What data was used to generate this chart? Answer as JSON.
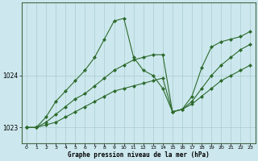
{
  "xlabel": "Graphe pression niveau de la mer (hPa)",
  "bg_color": "#cce8ee",
  "grid_color": "#aacccc",
  "line_color": "#2d6a2d",
  "xlim": [
    -0.5,
    23.5
  ],
  "ylim": [
    1022.7,
    1025.4
  ],
  "yticks": [
    1023,
    1024
  ],
  "ytick_labels": [
    "1023",
    "1024"
  ],
  "xticks": [
    0,
    1,
    2,
    3,
    4,
    5,
    6,
    7,
    8,
    9,
    10,
    11,
    12,
    13,
    14,
    15,
    16,
    17,
    18,
    19,
    20,
    21,
    22,
    23
  ],
  "series": [
    {
      "x": [
        0,
        1,
        2,
        3,
        4,
        5,
        6,
        7,
        8,
        9,
        10,
        11,
        12,
        13,
        14,
        15,
        16,
        17,
        18,
        19,
        20,
        21,
        22,
        23
      ],
      "y": [
        1023.0,
        1023.0,
        1023.05,
        1023.1,
        1023.2,
        1023.3,
        1023.4,
        1023.5,
        1023.6,
        1023.7,
        1023.75,
        1023.8,
        1023.85,
        1023.9,
        1023.95,
        1023.3,
        1023.35,
        1023.45,
        1023.6,
        1023.75,
        1023.9,
        1024.0,
        1024.1,
        1024.2
      ],
      "style": "-",
      "marker": "D",
      "markersize": 2.0
    },
    {
      "x": [
        0,
        1,
        2,
        3,
        4,
        5,
        6,
        7,
        8,
        9,
        10,
        11,
        12,
        13,
        14,
        15,
        16,
        17,
        18,
        19,
        20,
        21,
        22,
        23
      ],
      "y": [
        1023.0,
        1023.0,
        1023.1,
        1023.25,
        1023.4,
        1023.55,
        1023.65,
        1023.8,
        1023.95,
        1024.1,
        1024.2,
        1024.3,
        1024.35,
        1024.4,
        1024.4,
        1023.3,
        1023.35,
        1023.5,
        1023.75,
        1024.0,
        1024.2,
        1024.35,
        1024.5,
        1024.6
      ],
      "style": "-",
      "marker": "D",
      "markersize": 2.0
    },
    {
      "x": [
        0,
        1,
        2,
        3,
        4,
        5,
        6,
        7,
        8,
        9,
        10,
        11,
        12,
        13,
        14,
        15,
        16,
        17,
        18,
        19,
        20,
        21,
        22,
        23
      ],
      "y": [
        1023.0,
        1023.0,
        1023.2,
        1023.5,
        1023.7,
        1023.9,
        1024.1,
        1024.35,
        1024.7,
        1025.05,
        1025.1,
        1024.35,
        1024.1,
        1024.0,
        1023.75,
        1023.3,
        1023.35,
        1023.6,
        1024.15,
        1024.55,
        1024.65,
        1024.7,
        1024.75,
        1024.85
      ],
      "style": "-",
      "marker": "D",
      "markersize": 2.0
    }
  ]
}
